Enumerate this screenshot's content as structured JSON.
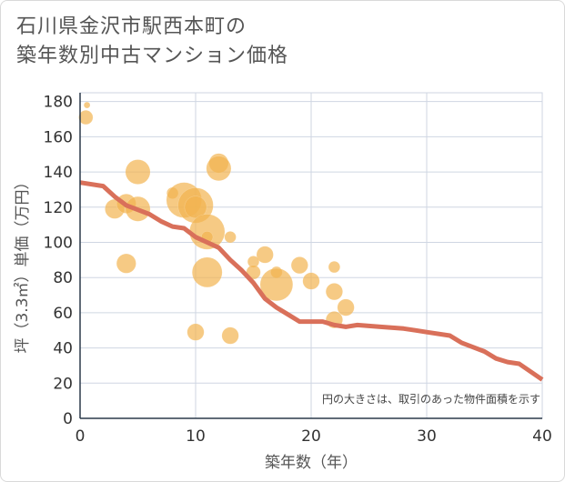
{
  "chart_data": {
    "type": "scatter",
    "title_lines": [
      "石川県金沢市駅西本町の",
      "築年数別中古マンション価格"
    ],
    "xlabel": "築年数（年）",
    "ylabel": "坪（3.3㎡）単価（万円）",
    "xlim": [
      0,
      40
    ],
    "ylim": [
      0,
      185
    ],
    "xticks": [
      0,
      10,
      20,
      30,
      40
    ],
    "yticks": [
      0,
      20,
      40,
      60,
      80,
      100,
      120,
      140,
      160,
      180
    ],
    "note": "円の大きさは、取引のあった物件面積を示す",
    "bubble_color": "#f2b450",
    "line_color": "#d9705a",
    "bubbles": [
      {
        "x": 0.6,
        "y": 178,
        "size": 1
      },
      {
        "x": 0.5,
        "y": 171,
        "size": 4
      },
      {
        "x": 5,
        "y": 140,
        "size": 8
      },
      {
        "x": 12,
        "y": 145,
        "size": 6
      },
      {
        "x": 12,
        "y": 142,
        "size": 8
      },
      {
        "x": 8,
        "y": 128,
        "size": 3
      },
      {
        "x": 9,
        "y": 124,
        "size": 12
      },
      {
        "x": 10,
        "y": 121,
        "size": 12
      },
      {
        "x": 10,
        "y": 120,
        "size": 7
      },
      {
        "x": 3,
        "y": 119,
        "size": 6
      },
      {
        "x": 4,
        "y": 122,
        "size": 6
      },
      {
        "x": 5,
        "y": 119,
        "size": 8
      },
      {
        "x": 11,
        "y": 106,
        "size": 12
      },
      {
        "x": 11,
        "y": 103,
        "size": 3
      },
      {
        "x": 13,
        "y": 103,
        "size": 3
      },
      {
        "x": 4,
        "y": 88,
        "size": 6
      },
      {
        "x": 16,
        "y": 93,
        "size": 5
      },
      {
        "x": 15,
        "y": 89,
        "size": 3
      },
      {
        "x": 11,
        "y": 83,
        "size": 10
      },
      {
        "x": 15,
        "y": 83,
        "size": 4
      },
      {
        "x": 17,
        "y": 83,
        "size": 3
      },
      {
        "x": 19,
        "y": 87,
        "size": 5
      },
      {
        "x": 22,
        "y": 86,
        "size": 3
      },
      {
        "x": 17,
        "y": 76,
        "size": 11
      },
      {
        "x": 20,
        "y": 78,
        "size": 5
      },
      {
        "x": 22,
        "y": 72,
        "size": 5
      },
      {
        "x": 23,
        "y": 63,
        "size": 5
      },
      {
        "x": 22,
        "y": 56,
        "size": 5
      },
      {
        "x": 10,
        "y": 49,
        "size": 5
      },
      {
        "x": 13,
        "y": 47,
        "size": 5
      }
    ],
    "trend": {
      "x": [
        0,
        2,
        3,
        4,
        6,
        7,
        8,
        9,
        10,
        11,
        12,
        13,
        14,
        15,
        16,
        17,
        18,
        19,
        20,
        21,
        22,
        23,
        24,
        26,
        28,
        29,
        30,
        32,
        33,
        35,
        36,
        37,
        38,
        40
      ],
      "y": [
        134,
        132,
        126,
        121,
        116,
        112,
        109,
        108,
        103,
        100,
        97,
        90,
        84,
        77,
        68,
        63,
        59,
        55,
        55,
        55,
        53,
        52,
        53,
        52,
        51,
        50,
        49,
        47,
        43,
        38,
        34,
        32,
        31,
        22
      ]
    }
  }
}
